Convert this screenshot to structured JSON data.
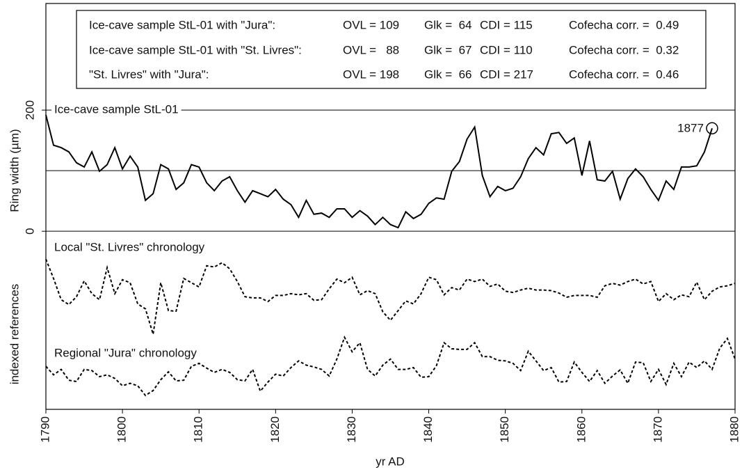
{
  "chart_data": {
    "type": "line",
    "xlabel": "yr AD",
    "ylabel": "Ring width (µm)",
    "ylabel2": "indexed references",
    "xlim": [
      1790,
      1880
    ],
    "xticks": [
      1790,
      1800,
      1810,
      1820,
      1830,
      1840,
      1850,
      1860,
      1870,
      1880
    ],
    "ylim": [
      -294,
      376
    ],
    "yticks": [
      0,
      200
    ],
    "hlines": [
      0,
      100,
      200
    ],
    "x": [
      1790,
      1791,
      1792,
      1793,
      1794,
      1795,
      1796,
      1797,
      1798,
      1799,
      1800,
      1801,
      1802,
      1803,
      1804,
      1805,
      1806,
      1807,
      1808,
      1809,
      1810,
      1811,
      1812,
      1813,
      1814,
      1815,
      1816,
      1817,
      1818,
      1819,
      1820,
      1821,
      1822,
      1823,
      1824,
      1825,
      1826,
      1827,
      1828,
      1829,
      1830,
      1831,
      1832,
      1833,
      1834,
      1835,
      1836,
      1837,
      1838,
      1839,
      1840,
      1841,
      1842,
      1843,
      1844,
      1845,
      1846,
      1847,
      1848,
      1849,
      1850,
      1851,
      1852,
      1853,
      1854,
      1855,
      1856,
      1857,
      1858,
      1859,
      1860,
      1861,
      1862,
      1863,
      1864,
      1865,
      1866,
      1867,
      1868,
      1869,
      1870,
      1871,
      1872,
      1873,
      1874,
      1875,
      1876,
      1877,
      1878,
      1879,
      1880
    ],
    "series": [
      {
        "name": "Ice-cave sample StL-01",
        "color": "#000000",
        "style": "solid",
        "values": [
          192,
          142,
          138,
          131,
          113,
          106,
          131,
          99,
          110,
          138,
          103,
          124,
          106,
          51,
          62,
          110,
          103,
          69,
          80,
          110,
          106,
          80,
          67,
          83,
          90,
          67,
          48,
          67,
          62,
          57,
          69,
          53,
          44,
          23,
          51,
          28,
          30,
          23,
          37,
          37,
          23,
          34,
          25,
          11,
          23,
          11,
          6,
          32,
          21,
          28,
          46,
          55,
          53,
          99,
          115,
          152,
          172,
          92,
          57,
          74,
          67,
          71,
          90,
          120,
          138,
          126,
          161,
          163,
          145,
          154,
          92,
          149,
          85,
          83,
          99,
          53,
          87,
          103,
          90,
          69,
          51,
          83,
          69,
          106,
          106,
          108,
          131,
          170,
          null,
          null,
          null
        ]
      },
      {
        "name": "Local \"St. Livres\" chronology",
        "color": "#000000",
        "style": "dashed",
        "values": [
          -46,
          -78,
          -113,
          -121,
          -108,
          -82,
          -103,
          -113,
          -60,
          -103,
          -80,
          -85,
          -120,
          -128,
          -170,
          -85,
          -131,
          -132,
          -78,
          -85,
          -92,
          -57,
          -59,
          -52,
          -62,
          -83,
          -108,
          -110,
          -110,
          -116,
          -106,
          -106,
          -103,
          -105,
          -103,
          -114,
          -113,
          -95,
          -79,
          -85,
          -76,
          -105,
          -98,
          -103,
          -133,
          -147,
          -131,
          -115,
          -120,
          -103,
          -76,
          -80,
          -105,
          -93,
          -97,
          -79,
          -83,
          -79,
          -91,
          -87,
          -99,
          -101,
          -97,
          -94,
          -97,
          -97,
          -98,
          -102,
          -109,
          -106,
          -106,
          -106,
          -109,
          -90,
          -86,
          -89,
          -83,
          -79,
          -87,
          -83,
          -116,
          -103,
          -113,
          -105,
          -108,
          -84,
          -113,
          -99,
          -92,
          -90,
          -86
        ]
      },
      {
        "name": "Regional \"Jura\" chronology",
        "color": "#000000",
        "style": "dashed",
        "values": [
          -223,
          -237,
          -228,
          -246,
          -248,
          -228,
          -230,
          -240,
          -237,
          -243,
          -255,
          -251,
          -255,
          -271,
          -263,
          -245,
          -232,
          -247,
          -246,
          -223,
          -218,
          -226,
          -233,
          -228,
          -233,
          -245,
          -247,
          -228,
          -264,
          -249,
          -236,
          -239,
          -225,
          -214,
          -221,
          -224,
          -228,
          -239,
          -211,
          -175,
          -199,
          -184,
          -228,
          -239,
          -221,
          -211,
          -228,
          -228,
          -225,
          -241,
          -240,
          -222,
          -184,
          -194,
          -195,
          -195,
          -184,
          -207,
          -207,
          -213,
          -214,
          -218,
          -230,
          -198,
          -214,
          -230,
          -225,
          -249,
          -248,
          -216,
          -233,
          -248,
          -230,
          -251,
          -239,
          -229,
          -251,
          -216,
          -217,
          -248,
          -228,
          -253,
          -218,
          -240,
          -216,
          -225,
          -214,
          -228,
          -193,
          -177,
          -211
        ]
      }
    ],
    "annotation": {
      "label": "1877",
      "x": 1877
    },
    "stats_table": [
      [
        "Ice-cave sample StL-01 with \"Jura\":",
        "OVL = 109",
        "Glk =  64",
        "CDI = 115",
        "Cofecha corr. =  0.49"
      ],
      [
        "Ice-cave sample StL-01 with \"St. Livres\":",
        "OVL =   88",
        "Glk =  67",
        "CDI = 110",
        "Cofecha corr. =  0.32"
      ],
      [
        "\"St. Livres\" with \"Jura\":",
        "OVL = 198",
        "Glk =  66",
        "CDI = 217",
        "Cofecha corr. =  0.46"
      ]
    ]
  }
}
